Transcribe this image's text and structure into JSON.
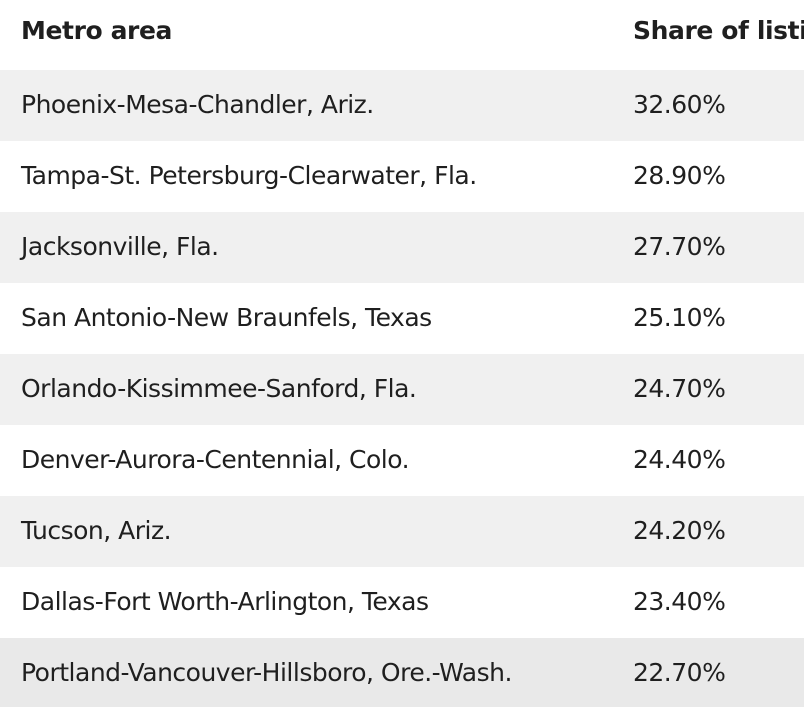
{
  "table": {
    "headers": {
      "metro": "Metro area",
      "share": "Share of listi"
    },
    "rows": [
      {
        "metro": "Phoenix-Mesa-Chandler, Ariz.",
        "share": "32.60%"
      },
      {
        "metro": "Tampa-St. Petersburg-Clearwater, Fla.",
        "share": "28.90%"
      },
      {
        "metro": "Jacksonville, Fla.",
        "share": "27.70%"
      },
      {
        "metro": "San Antonio-New Braunfels, Texas",
        "share": "25.10%"
      },
      {
        "metro": "Orlando-Kissimmee-Sanford, Fla.",
        "share": "24.70%"
      },
      {
        "metro": "Denver-Aurora-Centennial, Colo.",
        "share": "24.40%"
      },
      {
        "metro": "Tucson, Ariz.",
        "share": "24.20%"
      },
      {
        "metro": "Dallas-Fort Worth-Arlington, Texas",
        "share": "23.40%"
      },
      {
        "metro": "Portland-Vancouver-Hillsboro, Ore.-Wash.",
        "share": "22.70%"
      }
    ]
  },
  "colors": {
    "text": "#1f1f1f",
    "stripe": "#f0f0f0",
    "background": "#ffffff"
  }
}
